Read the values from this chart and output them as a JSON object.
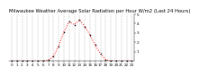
{
  "title": "Milwaukee Weather Average Solar Radiation per Hour W/m2 (Last 24 Hours)",
  "hours": [
    0,
    1,
    2,
    3,
    4,
    5,
    6,
    7,
    8,
    9,
    10,
    11,
    12,
    13,
    14,
    15,
    16,
    17,
    18,
    19,
    20,
    21,
    22,
    23
  ],
  "values": [
    0,
    0,
    0,
    0,
    0,
    0,
    1,
    8,
    50,
    160,
    310,
    420,
    390,
    440,
    370,
    280,
    170,
    80,
    15,
    2,
    0,
    0,
    0,
    0
  ],
  "line_color": "#ff0000",
  "bg_color": "#ffffff",
  "grid_color": "#888888",
  "ylim": [
    0,
    500
  ],
  "ytick_vals": [
    100,
    200,
    300,
    400,
    500
  ],
  "ytick_labels": [
    "1",
    "2",
    "3",
    "4",
    "5"
  ],
  "title_fontsize": 3.8,
  "tick_fontsize": 3.0
}
